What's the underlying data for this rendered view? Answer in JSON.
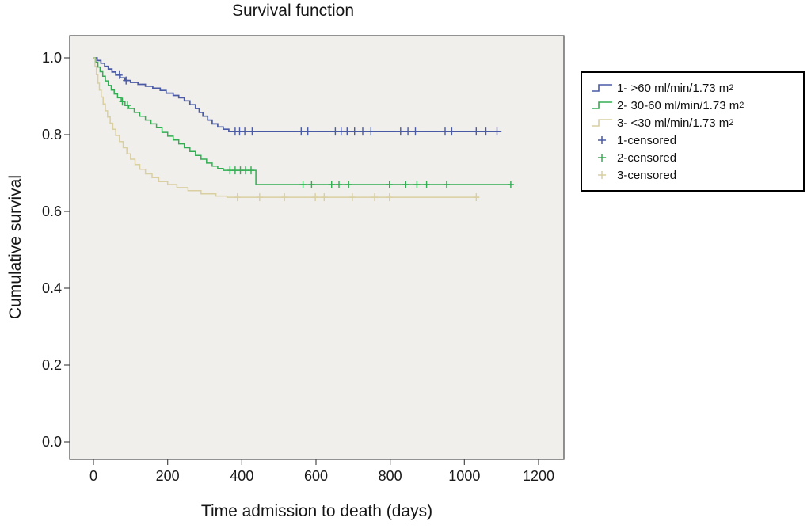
{
  "chart_data": {
    "type": "line",
    "subtype": "kaplan-meier-step",
    "title": "Survival function",
    "xlabel": "Time admission to death (days)",
    "ylabel": "Cumulative survival",
    "xlim": [
      0,
      1200
    ],
    "ylim": [
      0.0,
      1.0
    ],
    "xticks": [
      0,
      200,
      400,
      600,
      800,
      1000,
      1200
    ],
    "yticks": [
      {
        "v": 0.0,
        "label": "0.0"
      },
      {
        "v": 0.2,
        "label": "0.2"
      },
      {
        "v": 0.4,
        "label": "0.4"
      },
      {
        "v": 0.6,
        "label": "0.6"
      },
      {
        "v": 0.8,
        "label": "0.8"
      },
      {
        "v": 1.0,
        "label": "1.0"
      }
    ],
    "grid": false,
    "legend_position": "right-outside",
    "colors": {
      "plot_bg": "#f1efec",
      "frame": "#4a4a4a"
    },
    "series": [
      {
        "name": "1- >60 ml/min/1.73 m²",
        "color": "#4a5aa5",
        "steps": [
          [
            0,
            1.0
          ],
          [
            10,
            0.993
          ],
          [
            20,
            0.986
          ],
          [
            30,
            0.978
          ],
          [
            40,
            0.971
          ],
          [
            50,
            0.963
          ],
          [
            60,
            0.955
          ],
          [
            72,
            0.948
          ],
          [
            85,
            0.941
          ],
          [
            100,
            0.936
          ],
          [
            120,
            0.931
          ],
          [
            140,
            0.926
          ],
          [
            160,
            0.921
          ],
          [
            180,
            0.915
          ],
          [
            196,
            0.908
          ],
          [
            215,
            0.902
          ],
          [
            230,
            0.896
          ],
          [
            245,
            0.888
          ],
          [
            260,
            0.878
          ],
          [
            275,
            0.868
          ],
          [
            285,
            0.858
          ],
          [
            295,
            0.848
          ],
          [
            308,
            0.838
          ],
          [
            320,
            0.828
          ],
          [
            335,
            0.82
          ],
          [
            350,
            0.814
          ],
          [
            365,
            0.808
          ],
          [
            1100,
            0.808
          ]
        ],
        "censored_days": [
          70,
          88,
          382,
          394,
          408,
          428,
          560,
          578,
          652,
          668,
          684,
          704,
          726,
          748,
          828,
          848,
          868,
          948,
          966,
          1032,
          1058,
          1088
        ]
      },
      {
        "name": "2- 30-60 ml/min/1.73 m²",
        "color": "#33ad52",
        "steps": [
          [
            0,
            1.0
          ],
          [
            6,
            0.988
          ],
          [
            12,
            0.976
          ],
          [
            18,
            0.964
          ],
          [
            25,
            0.952
          ],
          [
            32,
            0.94
          ],
          [
            40,
            0.928
          ],
          [
            48,
            0.916
          ],
          [
            56,
            0.906
          ],
          [
            65,
            0.896
          ],
          [
            75,
            0.886
          ],
          [
            85,
            0.876
          ],
          [
            95,
            0.868
          ],
          [
            110,
            0.858
          ],
          [
            125,
            0.848
          ],
          [
            140,
            0.838
          ],
          [
            155,
            0.828
          ],
          [
            170,
            0.818
          ],
          [
            185,
            0.806
          ],
          [
            200,
            0.796
          ],
          [
            215,
            0.786
          ],
          [
            230,
            0.776
          ],
          [
            245,
            0.766
          ],
          [
            260,
            0.756
          ],
          [
            275,
            0.746
          ],
          [
            290,
            0.736
          ],
          [
            305,
            0.726
          ],
          [
            320,
            0.718
          ],
          [
            335,
            0.712
          ],
          [
            350,
            0.707
          ],
          [
            438,
            0.67
          ],
          [
            1130,
            0.67
          ]
        ],
        "censored_days": [
          78,
          92,
          368,
          382,
          396,
          410,
          425,
          565,
          588,
          642,
          662,
          688,
          798,
          842,
          872,
          898,
          952,
          1125
        ]
      },
      {
        "name": "3- <30 ml/min/1.73 m²",
        "color": "#d9cfa0",
        "steps": [
          [
            0,
            1.0
          ],
          [
            4,
            0.978
          ],
          [
            8,
            0.956
          ],
          [
            12,
            0.934
          ],
          [
            16,
            0.916
          ],
          [
            21,
            0.898
          ],
          [
            26,
            0.88
          ],
          [
            32,
            0.862
          ],
          [
            38,
            0.846
          ],
          [
            45,
            0.83
          ],
          [
            52,
            0.814
          ],
          [
            60,
            0.798
          ],
          [
            70,
            0.782
          ],
          [
            80,
            0.766
          ],
          [
            90,
            0.75
          ],
          [
            100,
            0.736
          ],
          [
            112,
            0.722
          ],
          [
            125,
            0.71
          ],
          [
            140,
            0.698
          ],
          [
            158,
            0.688
          ],
          [
            176,
            0.678
          ],
          [
            200,
            0.67
          ],
          [
            225,
            0.662
          ],
          [
            255,
            0.654
          ],
          [
            290,
            0.646
          ],
          [
            330,
            0.64
          ],
          [
            360,
            0.637
          ],
          [
            1040,
            0.637
          ]
        ],
        "censored_days": [
          388,
          448,
          515,
          598,
          622,
          698,
          758,
          798,
          1032
        ]
      }
    ]
  },
  "legend": {
    "items": [
      {
        "label": "1- >60 ml/min/1.73 m",
        "sup": "2",
        "marker": "line",
        "series": 0
      },
      {
        "label": "2- 30-60 ml/min/1.73 m",
        "sup": "2",
        "marker": "line",
        "series": 1
      },
      {
        "label": "3- <30 ml/min/1.73 m",
        "sup": "2",
        "marker": "line",
        "series": 2
      },
      {
        "label": "1-censored",
        "sup": "",
        "marker": "plus",
        "series": 0
      },
      {
        "label": "2-censored",
        "sup": "",
        "marker": "plus",
        "series": 1
      },
      {
        "label": "3-censored",
        "sup": "",
        "marker": "plus",
        "series": 2
      }
    ]
  }
}
